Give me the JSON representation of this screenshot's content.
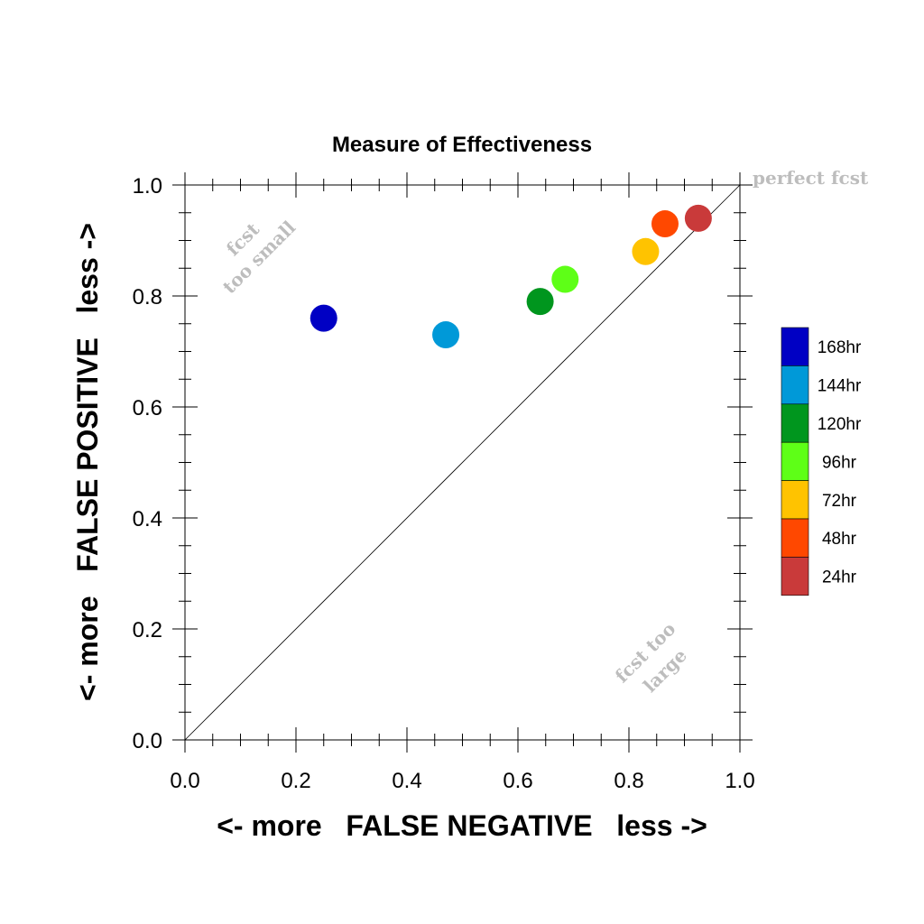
{
  "chart_data": {
    "type": "scatter",
    "title": "Measure of Effectiveness",
    "xlabel": "<- more   FALSE NEGATIVE   less ->",
    "ylabel": "<- more   FALSE POSITIVE   less ->",
    "xlim": [
      0.0,
      1.0
    ],
    "ylim": [
      0.0,
      1.0
    ],
    "xticks": [
      "0.0",
      "0.2",
      "0.4",
      "0.6",
      "0.8",
      "1.0"
    ],
    "yticks": [
      "0.0",
      "0.2",
      "0.4",
      "0.6",
      "0.8",
      "1.0"
    ],
    "grid": false,
    "reference_line": "diagonal y = x",
    "legend_position": "right",
    "annotations": {
      "perfect": "perfect fcst",
      "small_line1": "fcst",
      "small_line2": "too small",
      "large_line1": "fcst too",
      "large_line2": "large"
    },
    "series": [
      {
        "name": "168hr",
        "color": "#0000c4",
        "x": 0.25,
        "y": 0.76
      },
      {
        "name": "144hr",
        "color": "#0099d8",
        "x": 0.47,
        "y": 0.73
      },
      {
        "name": "120hr",
        "color": "#00961e",
        "x": 0.64,
        "y": 0.79
      },
      {
        "name": "96hr",
        "color": "#5eff17",
        "x": 0.685,
        "y": 0.83
      },
      {
        "name": "72hr",
        "color": "#ffc300",
        "x": 0.83,
        "y": 0.88
      },
      {
        "name": "48hr",
        "color": "#ff4800",
        "x": 0.865,
        "y": 0.93
      },
      {
        "name": "24hr",
        "color": "#c93a3a",
        "x": 0.925,
        "y": 0.94
      }
    ]
  }
}
